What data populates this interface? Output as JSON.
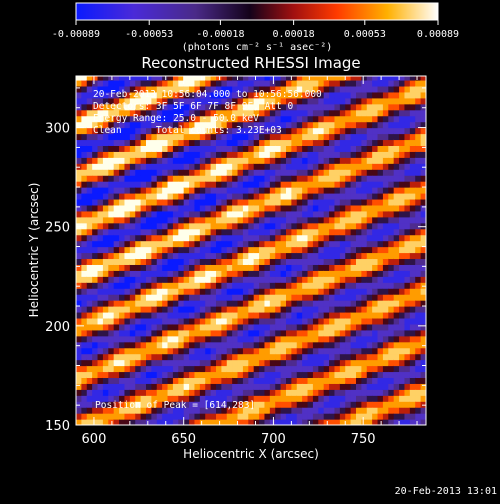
{
  "colorbar": {
    "tick_labels": [
      "-0.00089",
      "-0.00053",
      "-0.00018",
      "0.00018",
      "0.00053",
      "0.00089"
    ],
    "units": "(photons cm⁻² s⁻¹ asec⁻²)",
    "range": [
      -0.00089,
      0.00089
    ],
    "colormap": "red-temperature (blue to white)"
  },
  "chart_data": {
    "type": "heatmap",
    "title": "Reconstructed RHESSI Image",
    "xlabel": "Heliocentric X (arcsec)",
    "ylabel": "Heliocentric Y (arcsec)",
    "xlim": [
      590,
      785
    ],
    "ylim": [
      150,
      326
    ],
    "x_ticks": [
      600,
      650,
      700,
      750
    ],
    "y_ticks": [
      150,
      200,
      250,
      300
    ],
    "x_tick_labels": [
      "600",
      "650",
      "700",
      "750"
    ],
    "y_tick_labels": [
      "150",
      "200",
      "250",
      "300"
    ],
    "annotations": [
      "20-Feb-2013 10:56:04.000 to 10:56:56.000",
      "Detectors: 3F 5F 6F 7F 8F 9F, Att 0",
      "Energy Range: 25.0 - 50.0 keV",
      "Clean      Total counts: 3.23E+03"
    ],
    "peak_label": "Position of Peak = [614,283]",
    "peak_position": [
      614,
      283
    ],
    "stripe_slope": 0.36,
    "stripe_period_arcsec": 24,
    "grid": false
  },
  "footer": {
    "timestamp": "20-Feb-2013 13:01"
  }
}
